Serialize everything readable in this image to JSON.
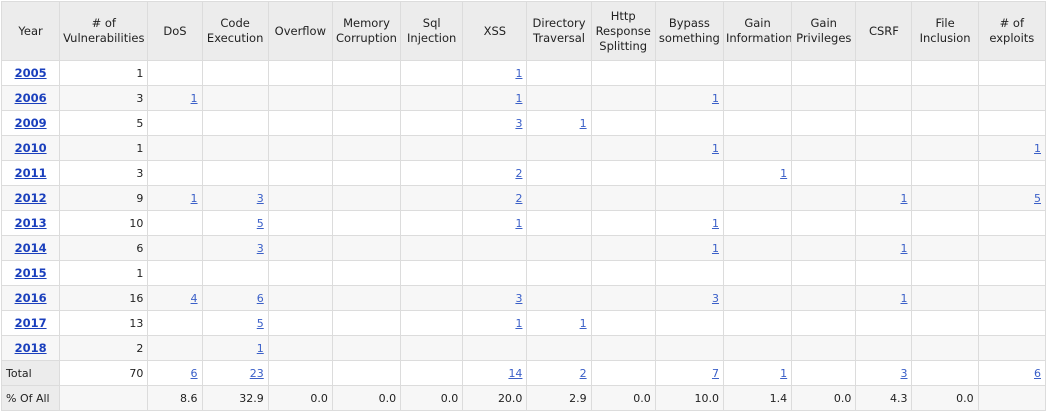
{
  "headers": [
    "Year",
    "# of Vulnerabilities",
    "DoS",
    "Code Execution",
    "Overflow",
    "Memory Corruption",
    "Sql Injection",
    "XSS",
    "Directory Traversal",
    "Http Response Splitting",
    "Bypass something",
    "Gain Information",
    "Gain Privileges",
    "CSRF",
    "File Inclusion",
    "# of exploits"
  ],
  "rows": [
    {
      "year": "2005",
      "cells": [
        "1",
        "",
        "",
        "",
        "",
        "",
        "1",
        "",
        "",
        "",
        "",
        "",
        "",
        "",
        ""
      ]
    },
    {
      "year": "2006",
      "cells": [
        "3",
        "1",
        "",
        "",
        "",
        "",
        "1",
        "",
        "",
        "1",
        "",
        "",
        "",
        "",
        ""
      ]
    },
    {
      "year": "2009",
      "cells": [
        "5",
        "",
        "",
        "",
        "",
        "",
        "3",
        "1",
        "",
        "",
        "",
        "",
        "",
        "",
        ""
      ]
    },
    {
      "year": "2010",
      "cells": [
        "1",
        "",
        "",
        "",
        "",
        "",
        "",
        "",
        "",
        "1",
        "",
        "",
        "",
        "",
        "1"
      ]
    },
    {
      "year": "2011",
      "cells": [
        "3",
        "",
        "",
        "",
        "",
        "",
        "2",
        "",
        "",
        "",
        "1",
        "",
        "",
        "",
        ""
      ]
    },
    {
      "year": "2012",
      "cells": [
        "9",
        "1",
        "3",
        "",
        "",
        "",
        "2",
        "",
        "",
        "",
        "",
        "",
        "1",
        "",
        "5"
      ]
    },
    {
      "year": "2013",
      "cells": [
        "10",
        "",
        "5",
        "",
        "",
        "",
        "1",
        "",
        "",
        "1",
        "",
        "",
        "",
        "",
        ""
      ]
    },
    {
      "year": "2014",
      "cells": [
        "6",
        "",
        "3",
        "",
        "",
        "",
        "",
        "",
        "",
        "1",
        "",
        "",
        "1",
        "",
        ""
      ]
    },
    {
      "year": "2015",
      "cells": [
        "1",
        "",
        "",
        "",
        "",
        "",
        "",
        "",
        "",
        "",
        "",
        "",
        "",
        "",
        ""
      ]
    },
    {
      "year": "2016",
      "cells": [
        "16",
        "4",
        "6",
        "",
        "",
        "",
        "3",
        "",
        "",
        "3",
        "",
        "",
        "1",
        "",
        ""
      ]
    },
    {
      "year": "2017",
      "cells": [
        "13",
        "",
        "5",
        "",
        "",
        "",
        "1",
        "1",
        "",
        "",
        "",
        "",
        "",
        "",
        ""
      ]
    },
    {
      "year": "2018",
      "cells": [
        "2",
        "",
        "1",
        "",
        "",
        "",
        "",
        "",
        "",
        "",
        "",
        "",
        "",
        "",
        ""
      ]
    }
  ],
  "total": {
    "label": "Total",
    "cells": [
      "70",
      "6",
      "23",
      "",
      "",
      "",
      "14",
      "2",
      "",
      "7",
      "1",
      "",
      "3",
      "",
      "6"
    ]
  },
  "percent": {
    "label": "% Of All",
    "cells": [
      "",
      "8.6",
      "32.9",
      "0.0",
      "0.0",
      "0.0",
      "20.0",
      "2.9",
      "0.0",
      "10.0",
      "1.4",
      "0.0",
      "4.3",
      "0.0",
      ""
    ]
  }
}
